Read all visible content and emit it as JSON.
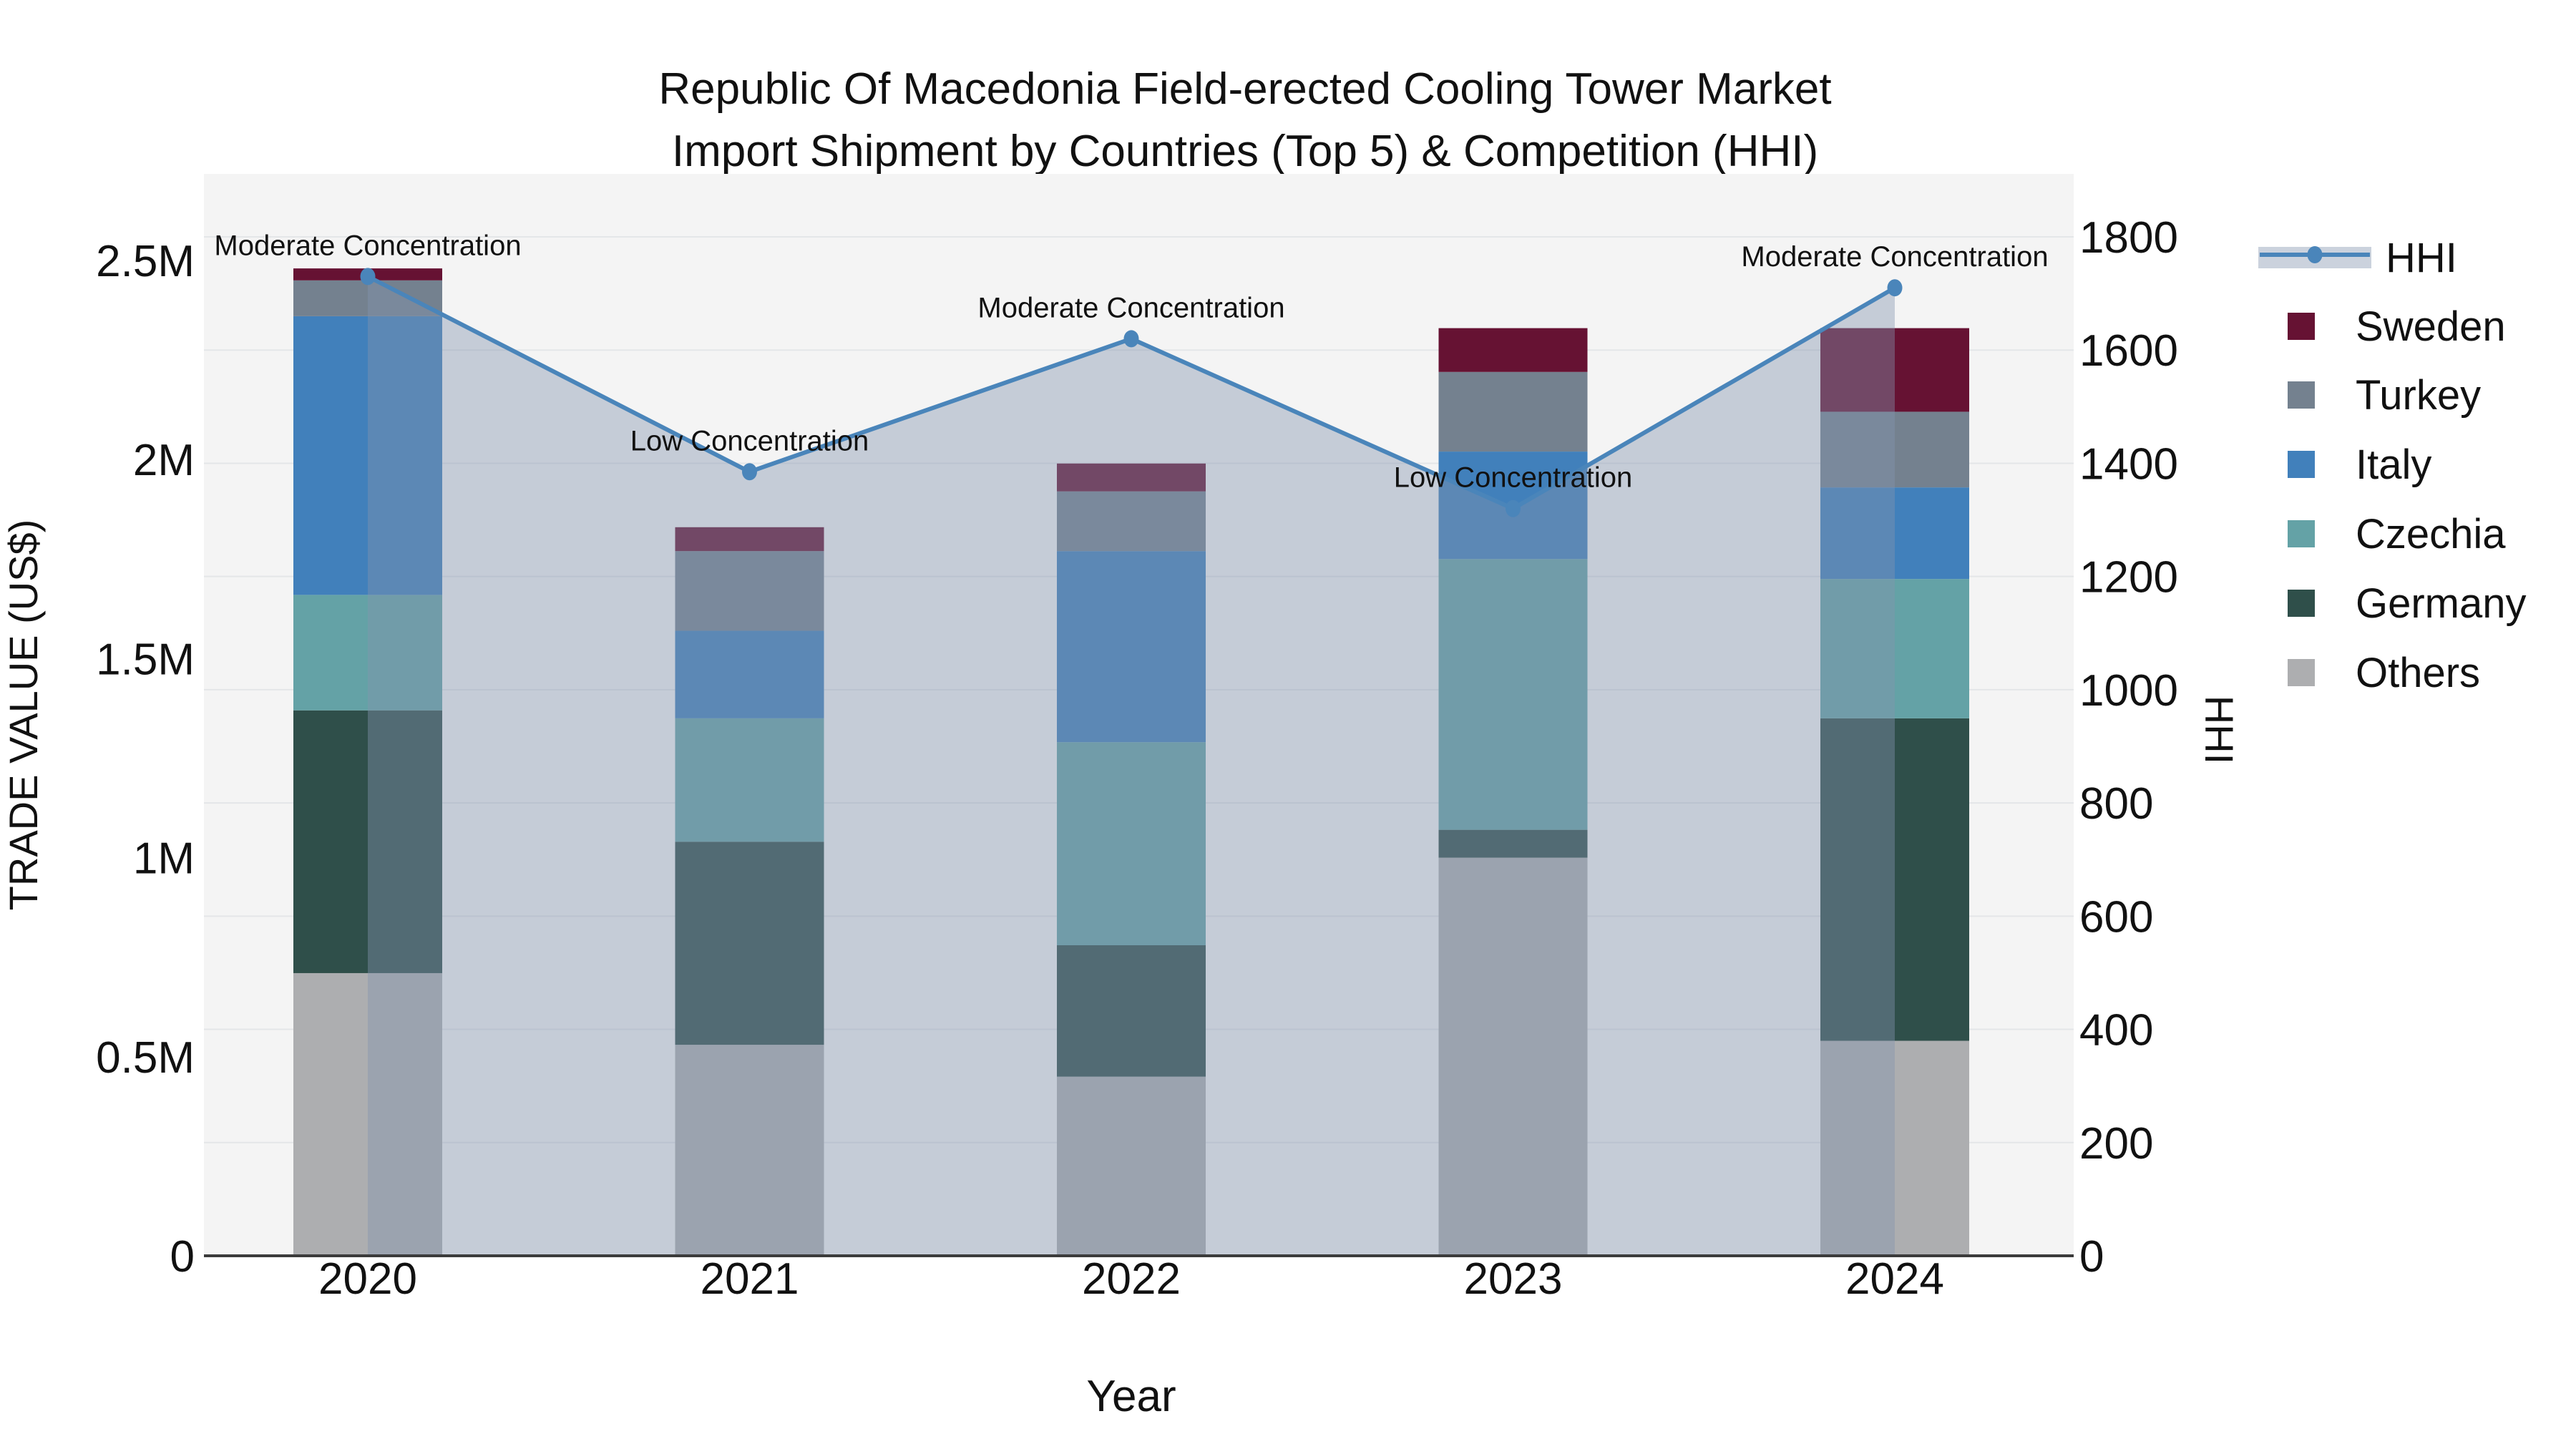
{
  "title": {
    "line1": "Republic Of Macedonia Field-erected Cooling Tower Market",
    "line2": "Import Shipment by Countries (Top 5) & Competition (HHI)"
  },
  "axes": {
    "x": {
      "title": "Year",
      "tick_labels": [
        "2020",
        "2021",
        "2022",
        "2023",
        "2024"
      ]
    },
    "y_left": {
      "title": "TRADE VALUE (US$)",
      "tick_labels": [
        "0",
        "0.5M",
        "1M",
        "1.5M",
        "2M",
        "2.5M"
      ],
      "tick_values": [
        0,
        500000,
        1000000,
        1500000,
        2000000,
        2500000
      ],
      "range": [
        0,
        2500000
      ]
    },
    "y_right": {
      "title": "HHI",
      "tick_labels": [
        "0",
        "200",
        "400",
        "600",
        "800",
        "1000",
        "1200",
        "1400",
        "1600",
        "1800"
      ],
      "tick_values": [
        0,
        200,
        400,
        600,
        800,
        1000,
        1200,
        1400,
        1600,
        1800
      ],
      "range": [
        0,
        1800
      ]
    }
  },
  "legend": {
    "items": [
      {
        "label": "HHI",
        "type": "line",
        "color": "#4a85ba"
      },
      {
        "label": "Sweden",
        "type": "swatch",
        "color": "#661233"
      },
      {
        "label": "Turkey",
        "type": "swatch",
        "color": "#74818f"
      },
      {
        "label": "Italy",
        "type": "swatch",
        "color": "#4180bb"
      },
      {
        "label": "Czechia",
        "type": "swatch",
        "color": "#64a2a6"
      },
      {
        "label": "Germany",
        "type": "swatch",
        "color": "#2f4f4a"
      },
      {
        "label": "Others",
        "type": "swatch",
        "color": "#adaeb0"
      }
    ]
  },
  "chart_data": {
    "type": "bar",
    "subtype": "stacked-bars-with-line-overlay",
    "title": "Republic Of Macedonia Field-erected Cooling Tower Market Import Shipment by Countries (Top 5) & Competition (HHI)",
    "xlabel": "Year",
    "ylabel_left": "TRADE VALUE (US$)",
    "ylabel_right": "HHI",
    "ylim_left": [
      0,
      2500000
    ],
    "ylim_right": [
      0,
      1800
    ],
    "grid": "horizontal-subtle",
    "legend_position": "right",
    "categories": [
      "2020",
      "2021",
      "2022",
      "2023",
      "2024"
    ],
    "series": [
      {
        "name": "Others",
        "color": "#adaeb0",
        "values": [
          710000,
          530000,
          450000,
          1000000,
          540000
        ]
      },
      {
        "name": "Germany",
        "color": "#2f4f4a",
        "values": [
          660000,
          510000,
          330000,
          70000,
          810000
        ]
      },
      {
        "name": "Czechia",
        "color": "#64a2a6",
        "values": [
          290000,
          310000,
          510000,
          680000,
          350000
        ]
      },
      {
        "name": "Italy",
        "color": "#4180bb",
        "values": [
          700000,
          220000,
          480000,
          270000,
          230000
        ]
      },
      {
        "name": "Turkey",
        "color": "#74818f",
        "values": [
          90000,
          200000,
          150000,
          200000,
          190000
        ]
      },
      {
        "name": "Sweden",
        "color": "#661233",
        "values": [
          30000,
          60000,
          70000,
          110000,
          210000
        ]
      }
    ],
    "bar_totals": [
      2480000,
      1830000,
      1990000,
      2330000,
      2330000
    ],
    "line_series": {
      "name": "HHI",
      "axis": "right",
      "color": "#4a85ba",
      "area_fill": "rgba(130,148,175,0.42)",
      "values": [
        1730,
        1385,
        1620,
        1320,
        1710
      ]
    },
    "annotations": [
      {
        "x": "2020",
        "text": "Moderate Concentration"
      },
      {
        "x": "2021",
        "text": "Low Concentration"
      },
      {
        "x": "2022",
        "text": "Moderate Concentration"
      },
      {
        "x": "2023",
        "text": "Low Concentration"
      },
      {
        "x": "2024",
        "text": "Moderate Concentration"
      }
    ]
  },
  "style": {
    "plot_bg": "#f4f4f4",
    "paper_bg": "#ffffff",
    "grid_color": "#e4e6e8",
    "axis_line_color": "#3b3b3b",
    "text_color": "#111111"
  }
}
